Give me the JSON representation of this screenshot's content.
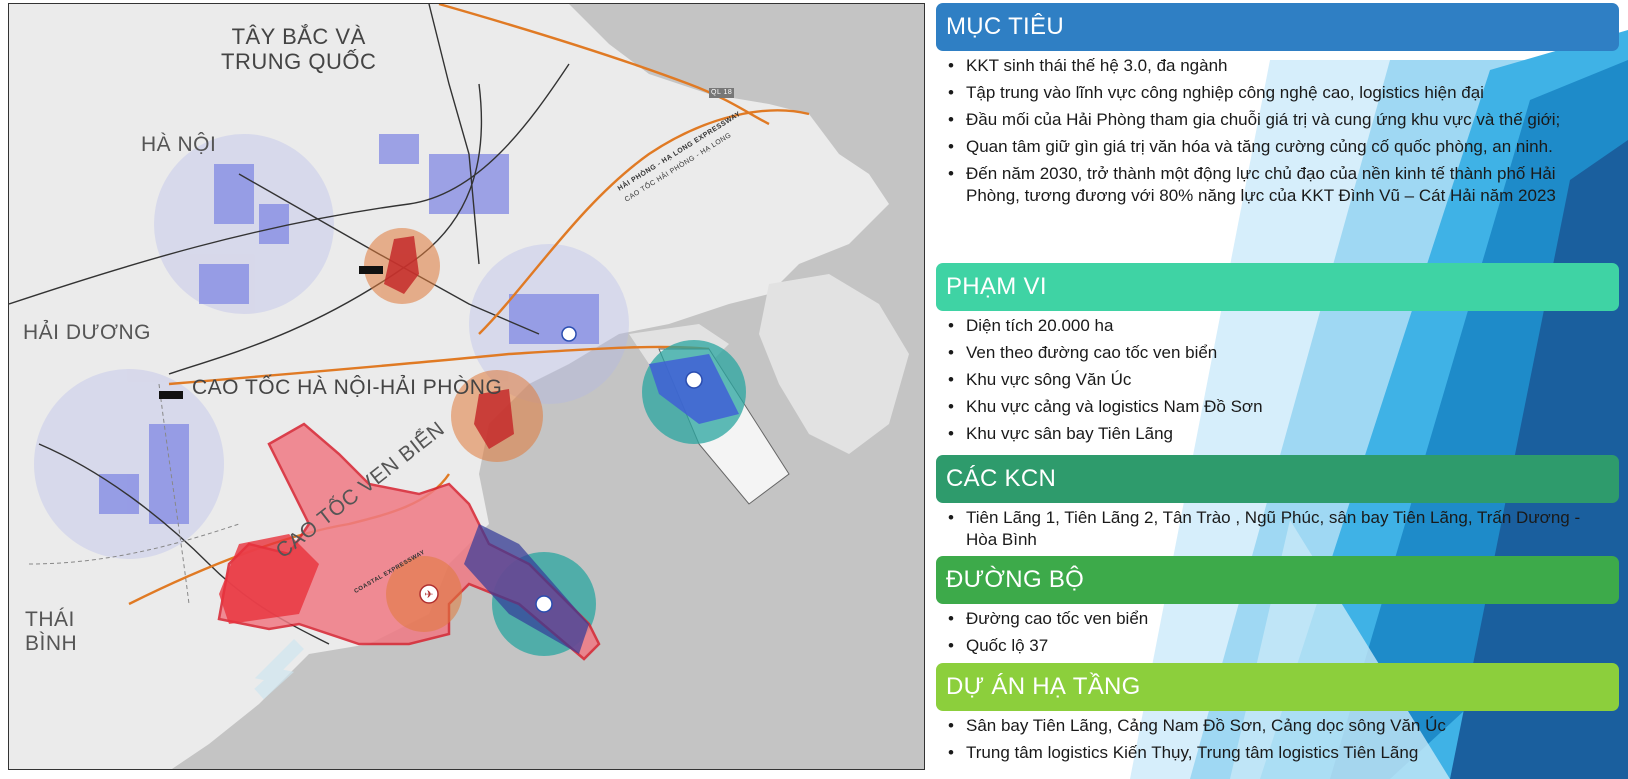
{
  "map": {
    "labels": {
      "tay_bac": "TÂY BẮC VÀ\nTRUNG QUỐC",
      "ha_noi": "HÀ NỘI",
      "hai_duong": "HẢI DƯƠNG",
      "thai_binh": "THÁI\nBÌNH",
      "cao_toc_hn_hp": "CAO TỐC HÀ NỘI-HẢI PHÒNG",
      "cao_toc_ven_bien": "CAO TỐC VEN BIỂN",
      "expressway": "HẢI PHÒNG - HẠ LONG EXPRESSWAY",
      "expressway_vn": "CAO TỐC HẢI PHÒNG - HẠ LONG",
      "coastal": "COASTAL EXPRESSWAY",
      "ql18": "QL 18"
    },
    "colors": {
      "sea": "#bdbdbd",
      "land": "#e8e8e8",
      "zone_red": "#e8323c",
      "port_teal": "#2aa6a0",
      "industrial_blue": "#6e78e0"
    }
  },
  "sections": [
    {
      "id": "muc-tieu",
      "title": "MỤC TIÊU",
      "color": "#2f7fc4",
      "items": [
        "KKT sinh thái thế hệ 3.0, đa ngành",
        "Tập trung vào lĩnh vực công nghiệp công nghệ cao, logistics hiện đại",
        "Đầu mối của Hải Phòng tham gia chuỗi giá trị và cung ứng khu vực và thế giới;",
        "Quan tâm giữ gìn giá trị văn hóa và tăng cường củng cố quốc phòng, an ninh.",
        "Đến năm 2030, trở thành một động lực chủ đạo của nền kinh tế thành phố Hải Phòng, tương đương với 80% năng lực của KKT Đình Vũ – Cát Hải năm 2023"
      ]
    },
    {
      "id": "pham-vi",
      "title": "PHẠM VI",
      "color": "#3fd3a4",
      "items": [
        "Diện tích 20.000 ha",
        "Ven theo đường cao tốc ven biển",
        "Khu vực sông Văn Úc",
        "Khu vực cảng và logistics Nam Đồ Sơn",
        "Khu vực sân bay Tiên Lãng"
      ]
    },
    {
      "id": "cac-kcn",
      "title": "CÁC KCN",
      "color": "#2e9b6c",
      "items": [
        "Tiên Lãng 1, Tiên Lãng 2, Tân Trào , Ngũ Phúc, sân bay Tiên Lãng, Trấn Dương - Hòa Bình"
      ]
    },
    {
      "id": "duong-bo",
      "title": "ĐƯỜNG BỘ",
      "color": "#3daa4a",
      "items": [
        "Đường cao tốc ven biển",
        "Quốc lộ 37"
      ]
    },
    {
      "id": "du-an",
      "title": "DỰ ÁN HẠ TẦNG",
      "color": "#8ccf3c",
      "items": [
        "Sân bay Tiên Lãng, Cảng Nam Đồ Sơn,  Cảng dọc sông Văn Úc",
        "Trung tâm logistics Kiến Thụy, Trung tâm logistics Tiên Lãng"
      ]
    }
  ]
}
